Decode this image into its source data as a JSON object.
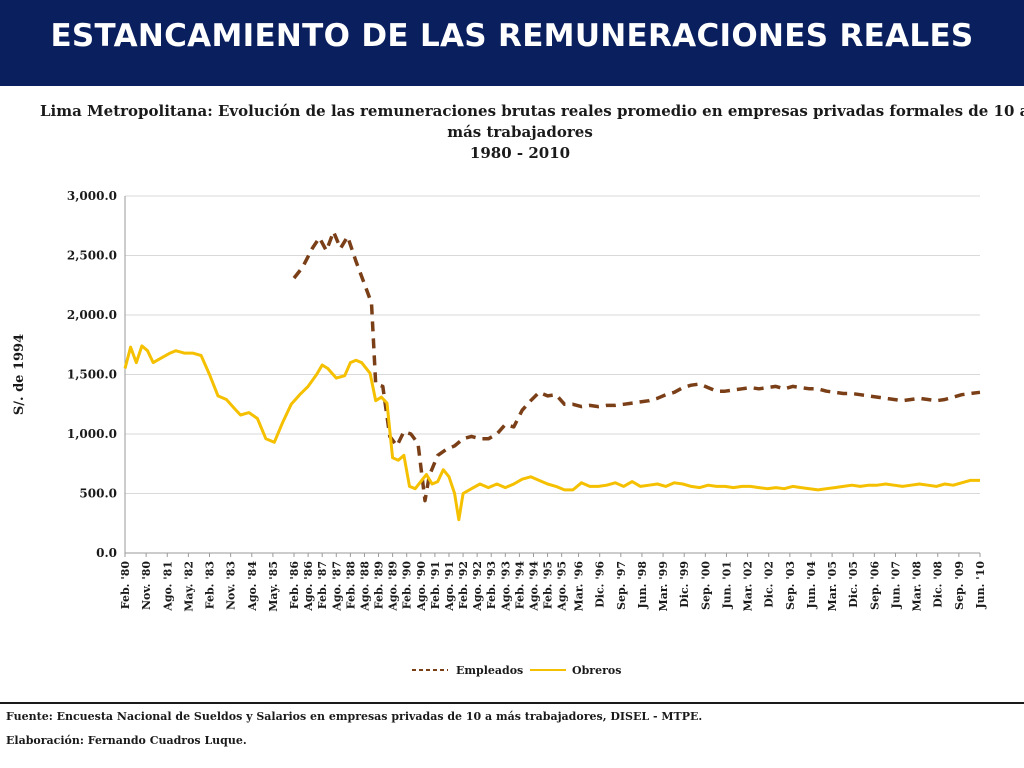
{
  "header": {
    "title": "ESTANCAMIENTO DE LAS REMUNERACIONES REALES"
  },
  "footer": {
    "source": "Fuente: Encuesta Nacional de Sueldos y Salarios en empresas privadas de 10 a más trabajadores, DISEL - MTPE.",
    "credit": "Elaboración: Fernando Cuadros Luque."
  },
  "colors": {
    "banner": "#0a1f5e",
    "empleados": "#7b3f17",
    "obreros": "#f5c000",
    "grid": "#d9d9d9",
    "axis": "#9a9a9a"
  },
  "chart_data": {
    "type": "line",
    "title_lines": [
      "Lima Metropolitana: Evolución de las remuneraciones brutas reales promedio en empresas privadas formales de 10 a",
      "más trabajadores",
      "1980 - 2010"
    ],
    "xlabel": "",
    "ylabel": "S/. de 1994",
    "ylim": [
      0,
      3000
    ],
    "yticks": [
      0,
      500,
      1000,
      1500,
      2000,
      2500,
      3000
    ],
    "ytick_labels": [
      "0.0",
      "500.0",
      "1,000.0",
      "1,500.0",
      "2,000.0",
      "2,500.0",
      "3,000.0"
    ],
    "grid": true,
    "legend_position": "bottom",
    "x_dates": [
      1980.1,
      1980.36,
      1980.6,
      1980.85,
      1981.1,
      1981.35,
      1981.6,
      1981.85,
      1982.1,
      1982.35,
      1982.6,
      1982.85,
      1983.1,
      1983.35,
      1983.6,
      1983.85,
      1984.1,
      1984.35,
      1984.6,
      1984.85,
      1985.1,
      1985.35,
      1985.6,
      1985.85,
      1986.1,
      1986.35,
      1986.6,
      1986.85,
      1987.1,
      1987.35,
      1987.6,
      1987.85,
      1988.1,
      1988.35,
      1988.6,
      1988.85,
      1989.1,
      1989.35,
      1989.6,
      1989.85,
      1990.1,
      1990.35,
      1990.6,
      1990.85,
      1991.1,
      1991.35,
      1991.6,
      1991.85,
      1992.1,
      1992.35,
      1992.6,
      1992.85,
      1993.1,
      1993.35,
      1993.6,
      1993.85,
      1994.1,
      1994.35,
      1994.6,
      1994.85,
      1995.1,
      1995.35,
      1995.6,
      1995.85,
      1996.1,
      1996.35,
      1996.6,
      1996.85,
      1997.1,
      1997.35,
      1997.6,
      1997.85,
      1998.1,
      1998.35,
      1998.6,
      1998.85,
      1999.1,
      1999.35,
      1999.6,
      1999.85,
      2000.1,
      2000.35,
      2000.6,
      2000.85,
      2001.1,
      2001.35,
      2001.6,
      2001.85,
      2002.1,
      2002.35,
      2002.6,
      2002.85,
      2003.1,
      2003.35,
      2003.6,
      2003.85,
      2004.1,
      2004.35,
      2004.6,
      2004.85,
      2005.1,
      2005.35,
      2005.6,
      2005.85,
      2006.1,
      2006.35,
      2006.6,
      2006.85,
      2007.1,
      2007.35,
      2007.6,
      2007.85,
      2008.1,
      2008.35,
      2008.6,
      2008.85,
      2009.1,
      2009.35,
      2009.6,
      2009.85,
      2010.1,
      2010.35
    ],
    "x_tick_labels": [
      "Feb. '80",
      "Nov. '80",
      "Ago. '81",
      "May. '82",
      "Feb. '83",
      "Nov. '83",
      "Ago. '84",
      "May. '85",
      "Feb. '86",
      "Ago. '86",
      "Feb. '87",
      "Ago. '87",
      "Feb. '88",
      "Ago. '88",
      "Feb. '89",
      "Ago. '89",
      "Feb. '90",
      "Ago. '90",
      "Feb. '91",
      "Ago. '91",
      "Feb. '92",
      "Ago. '92",
      "Feb. '93",
      "Ago. '93",
      "Feb. '94",
      "Ago. '94",
      "Feb. '95",
      "Ago. '95",
      "Mar. '96",
      "Dic. '96",
      "Sep. '97",
      "Jun. '98",
      "Mar. '99",
      "Dic. '99",
      "Sep. '00",
      "Jun. '01",
      "Mar. '02",
      "Dic. '02",
      "Sep. '03",
      "Jun. '04",
      "Mar. '05",
      "Dic. '05",
      "Sep. '06",
      "Jun. '07",
      "Mar. '08",
      "Dic. '08",
      "Sep. '09",
      "Jun. '10"
    ],
    "x_tick_dates": [
      1980.1,
      1980.85,
      1981.6,
      1982.35,
      1983.1,
      1983.85,
      1984.6,
      1985.35,
      1986.1,
      1986.6,
      1987.1,
      1987.6,
      1988.1,
      1988.6,
      1989.1,
      1989.6,
      1990.1,
      1990.6,
      1991.1,
      1991.6,
      1992.1,
      1992.6,
      1993.1,
      1993.6,
      1994.1,
      1994.6,
      1995.1,
      1995.6,
      1996.2,
      1996.95,
      1997.7,
      1998.45,
      1999.2,
      1999.95,
      2000.7,
      2001.45,
      2002.2,
      2002.95,
      2003.7,
      2004.45,
      2005.2,
      2005.95,
      2006.7,
      2007.45,
      2008.2,
      2008.95,
      2009.7,
      2010.45
    ],
    "x_date_domain": [
      1980.1,
      2010.45
    ],
    "series": [
      {
        "name": "Empleados",
        "style": "dashed",
        "points": [
          [
            1986.1,
            2310
          ],
          [
            1986.4,
            2400
          ],
          [
            1986.75,
            2560
          ],
          [
            1987.0,
            2650
          ],
          [
            1987.25,
            2540
          ],
          [
            1987.5,
            2700
          ],
          [
            1987.75,
            2560
          ],
          [
            1988.0,
            2660
          ],
          [
            1988.3,
            2450
          ],
          [
            1988.6,
            2260
          ],
          [
            1988.85,
            2100
          ],
          [
            1989.0,
            1420
          ],
          [
            1989.25,
            1400
          ],
          [
            1989.5,
            980
          ],
          [
            1989.75,
            900
          ],
          [
            1990.0,
            1020
          ],
          [
            1990.25,
            1000
          ],
          [
            1990.5,
            920
          ],
          [
            1990.75,
            440
          ],
          [
            1990.9,
            650
          ],
          [
            1991.2,
            820
          ],
          [
            1991.5,
            870
          ],
          [
            1991.8,
            900
          ],
          [
            1992.1,
            960
          ],
          [
            1992.4,
            980
          ],
          [
            1992.7,
            960
          ],
          [
            1993.0,
            960
          ],
          [
            1993.3,
            1000
          ],
          [
            1993.6,
            1080
          ],
          [
            1993.9,
            1060
          ],
          [
            1994.2,
            1200
          ],
          [
            1994.5,
            1280
          ],
          [
            1994.8,
            1350
          ],
          [
            1995.1,
            1320
          ],
          [
            1995.4,
            1330
          ],
          [
            1995.7,
            1250
          ],
          [
            1996.0,
            1250
          ],
          [
            1996.3,
            1230
          ],
          [
            1996.6,
            1240
          ],
          [
            1996.9,
            1230
          ],
          [
            1997.2,
            1240
          ],
          [
            1997.5,
            1240
          ],
          [
            1997.8,
            1250
          ],
          [
            1998.1,
            1260
          ],
          [
            1998.4,
            1270
          ],
          [
            1998.7,
            1280
          ],
          [
            1999.0,
            1300
          ],
          [
            1999.3,
            1330
          ],
          [
            1999.6,
            1350
          ],
          [
            1999.9,
            1390
          ],
          [
            2000.2,
            1410
          ],
          [
            2000.5,
            1420
          ],
          [
            2000.8,
            1390
          ],
          [
            2001.1,
            1360
          ],
          [
            2001.4,
            1360
          ],
          [
            2001.7,
            1370
          ],
          [
            2002.0,
            1380
          ],
          [
            2002.3,
            1390
          ],
          [
            2002.6,
            1380
          ],
          [
            2002.9,
            1390
          ],
          [
            2003.2,
            1400
          ],
          [
            2003.5,
            1380
          ],
          [
            2003.8,
            1400
          ],
          [
            2004.1,
            1390
          ],
          [
            2004.4,
            1380
          ],
          [
            2004.7,
            1380
          ],
          [
            2005.0,
            1360
          ],
          [
            2005.3,
            1350
          ],
          [
            2005.6,
            1340
          ],
          [
            2005.9,
            1340
          ],
          [
            2006.2,
            1330
          ],
          [
            2006.5,
            1320
          ],
          [
            2006.8,
            1310
          ],
          [
            2007.1,
            1300
          ],
          [
            2007.4,
            1290
          ],
          [
            2007.7,
            1280
          ],
          [
            2008.0,
            1290
          ],
          [
            2008.3,
            1300
          ],
          [
            2008.6,
            1290
          ],
          [
            2008.9,
            1280
          ],
          [
            2009.2,
            1290
          ],
          [
            2009.5,
            1310
          ],
          [
            2009.8,
            1330
          ],
          [
            2010.1,
            1340
          ],
          [
            2010.45,
            1350
          ]
        ]
      },
      {
        "name": "Obreros",
        "style": "solid",
        "points": [
          [
            1980.1,
            1550
          ],
          [
            1980.3,
            1730
          ],
          [
            1980.5,
            1600
          ],
          [
            1980.7,
            1740
          ],
          [
            1980.9,
            1700
          ],
          [
            1981.1,
            1600
          ],
          [
            1981.4,
            1640
          ],
          [
            1981.7,
            1680
          ],
          [
            1981.9,
            1700
          ],
          [
            1982.2,
            1680
          ],
          [
            1982.5,
            1680
          ],
          [
            1982.8,
            1660
          ],
          [
            1983.1,
            1500
          ],
          [
            1983.4,
            1320
          ],
          [
            1983.7,
            1290
          ],
          [
            1984.0,
            1210
          ],
          [
            1984.2,
            1160
          ],
          [
            1984.5,
            1180
          ],
          [
            1984.8,
            1130
          ],
          [
            1985.1,
            960
          ],
          [
            1985.4,
            930
          ],
          [
            1985.7,
            1100
          ],
          [
            1986.0,
            1250
          ],
          [
            1986.3,
            1330
          ],
          [
            1986.6,
            1400
          ],
          [
            1986.9,
            1500
          ],
          [
            1987.1,
            1580
          ],
          [
            1987.3,
            1550
          ],
          [
            1987.6,
            1470
          ],
          [
            1987.9,
            1490
          ],
          [
            1988.1,
            1600
          ],
          [
            1988.3,
            1620
          ],
          [
            1988.5,
            1600
          ],
          [
            1988.8,
            1510
          ],
          [
            1989.0,
            1280
          ],
          [
            1989.2,
            1310
          ],
          [
            1989.4,
            1260
          ],
          [
            1989.6,
            800
          ],
          [
            1989.8,
            780
          ],
          [
            1990.0,
            820
          ],
          [
            1990.2,
            560
          ],
          [
            1990.4,
            540
          ],
          [
            1990.6,
            600
          ],
          [
            1990.8,
            660
          ],
          [
            1991.0,
            580
          ],
          [
            1991.2,
            600
          ],
          [
            1991.4,
            700
          ],
          [
            1991.6,
            640
          ],
          [
            1991.8,
            500
          ],
          [
            1991.95,
            280
          ],
          [
            1992.1,
            500
          ],
          [
            1992.4,
            540
          ],
          [
            1992.7,
            580
          ],
          [
            1993.0,
            550
          ],
          [
            1993.3,
            580
          ],
          [
            1993.6,
            550
          ],
          [
            1993.9,
            580
          ],
          [
            1994.2,
            620
          ],
          [
            1994.5,
            640
          ],
          [
            1994.8,
            610
          ],
          [
            1995.1,
            580
          ],
          [
            1995.4,
            560
          ],
          [
            1995.7,
            530
          ],
          [
            1996.0,
            530
          ],
          [
            1996.3,
            590
          ],
          [
            1996.6,
            560
          ],
          [
            1996.9,
            560
          ],
          [
            1997.2,
            570
          ],
          [
            1997.5,
            590
          ],
          [
            1997.8,
            560
          ],
          [
            1998.1,
            600
          ],
          [
            1998.4,
            560
          ],
          [
            1998.7,
            570
          ],
          [
            1999.0,
            580
          ],
          [
            1999.3,
            560
          ],
          [
            1999.6,
            590
          ],
          [
            1999.9,
            580
          ],
          [
            2000.2,
            560
          ],
          [
            2000.5,
            550
          ],
          [
            2000.8,
            570
          ],
          [
            2001.1,
            560
          ],
          [
            2001.4,
            560
          ],
          [
            2001.7,
            550
          ],
          [
            2002.0,
            560
          ],
          [
            2002.3,
            560
          ],
          [
            2002.6,
            550
          ],
          [
            2002.9,
            540
          ],
          [
            2003.2,
            550
          ],
          [
            2003.5,
            540
          ],
          [
            2003.8,
            560
          ],
          [
            2004.1,
            550
          ],
          [
            2004.4,
            540
          ],
          [
            2004.7,
            530
          ],
          [
            2005.0,
            540
          ],
          [
            2005.3,
            550
          ],
          [
            2005.6,
            560
          ],
          [
            2005.9,
            570
          ],
          [
            2006.2,
            560
          ],
          [
            2006.5,
            570
          ],
          [
            2006.8,
            570
          ],
          [
            2007.1,
            580
          ],
          [
            2007.4,
            570
          ],
          [
            2007.7,
            560
          ],
          [
            2008.0,
            570
          ],
          [
            2008.3,
            580
          ],
          [
            2008.6,
            570
          ],
          [
            2008.9,
            560
          ],
          [
            2009.2,
            580
          ],
          [
            2009.5,
            570
          ],
          [
            2009.8,
            590
          ],
          [
            2010.1,
            610
          ],
          [
            2010.45,
            610
          ]
        ]
      }
    ]
  }
}
